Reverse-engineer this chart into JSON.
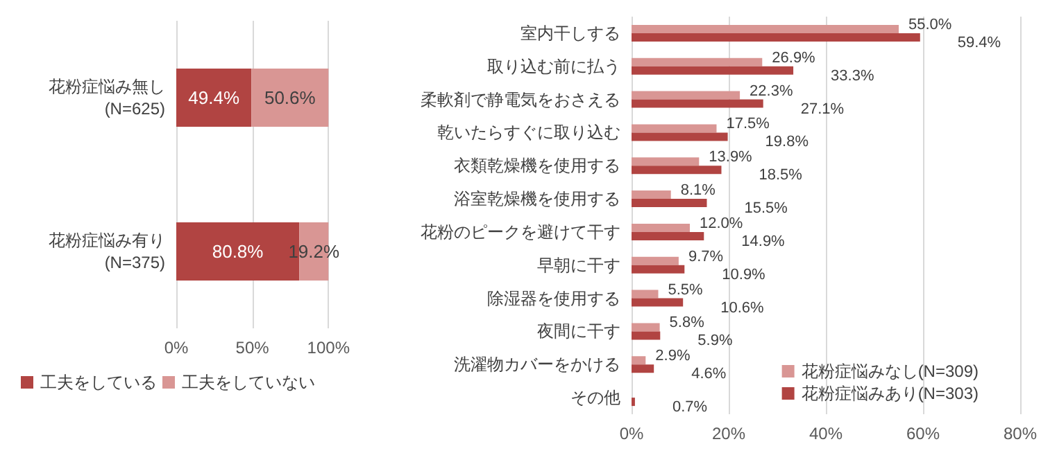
{
  "chart_data": [
    {
      "type": "bar",
      "orientation": "horizontal",
      "stacked": true,
      "categories": [
        "花粉症悩み無し\n(N=625)",
        "花粉症悩み有り\n(N=375)"
      ],
      "series": [
        {
          "name": "工夫をしている",
          "color": "#b14442",
          "values": [
            49.4,
            80.8
          ],
          "value_labels": [
            "49.4%",
            "80.8%"
          ]
        },
        {
          "name": "工夫をしていない",
          "color": "#d99694",
          "values": [
            50.6,
            19.2
          ],
          "value_labels": [
            "50.6%",
            "19.2%"
          ]
        }
      ],
      "xlim": [
        0,
        100
      ],
      "xticks": [
        {
          "value": 0,
          "label": "0%"
        },
        {
          "value": 50,
          "label": "50%"
        },
        {
          "value": 100,
          "label": "100%"
        }
      ],
      "grid": "x",
      "legend": "bottom"
    },
    {
      "type": "bar",
      "orientation": "horizontal",
      "categories": [
        "室内干しする",
        "取り込む前に払う",
        "柔軟剤で静電気をおさえる",
        "乾いたらすぐに取り込む",
        "衣類乾燥機を使用する",
        "浴室乾燥機を使用する",
        "花粉のピークを避けて干す",
        "早朝に干す",
        "除湿器を使用する",
        "夜間に干す",
        "洗濯物カバーをかける",
        "その他"
      ],
      "series": [
        {
          "name": "花粉症悩みなし(N=309)",
          "color": "#d99694",
          "values": [
            55.0,
            26.9,
            22.3,
            17.5,
            13.9,
            8.1,
            12.0,
            9.7,
            5.5,
            5.8,
            2.9,
            null
          ],
          "value_labels": [
            "55.0%",
            "26.9%",
            "22.3%",
            "17.5%",
            "13.9%",
            "8.1%",
            "12.0%",
            "9.7%",
            "5.5%",
            "5.8%",
            "2.9%",
            null
          ]
        },
        {
          "name": "花粉症悩みあり(N=303)",
          "color": "#b14442",
          "values": [
            59.4,
            33.3,
            27.1,
            19.8,
            18.5,
            15.5,
            14.9,
            10.9,
            10.6,
            5.9,
            4.6,
            0.7
          ],
          "value_labels": [
            "59.4%",
            "33.3%",
            "27.1%",
            "19.8%",
            "18.5%",
            "15.5%",
            "14.9%",
            "10.9%",
            "10.6%",
            "5.9%",
            "4.6%",
            "0.7%"
          ]
        }
      ],
      "xlim": [
        0,
        80
      ],
      "xticks": [
        {
          "value": 0,
          "label": "0%"
        },
        {
          "value": 20,
          "label": "20%"
        },
        {
          "value": 40,
          "label": "40%"
        },
        {
          "value": 60,
          "label": "60%"
        },
        {
          "value": 80,
          "label": "80%"
        }
      ],
      "grid": "x",
      "legend": "bottom right"
    }
  ]
}
